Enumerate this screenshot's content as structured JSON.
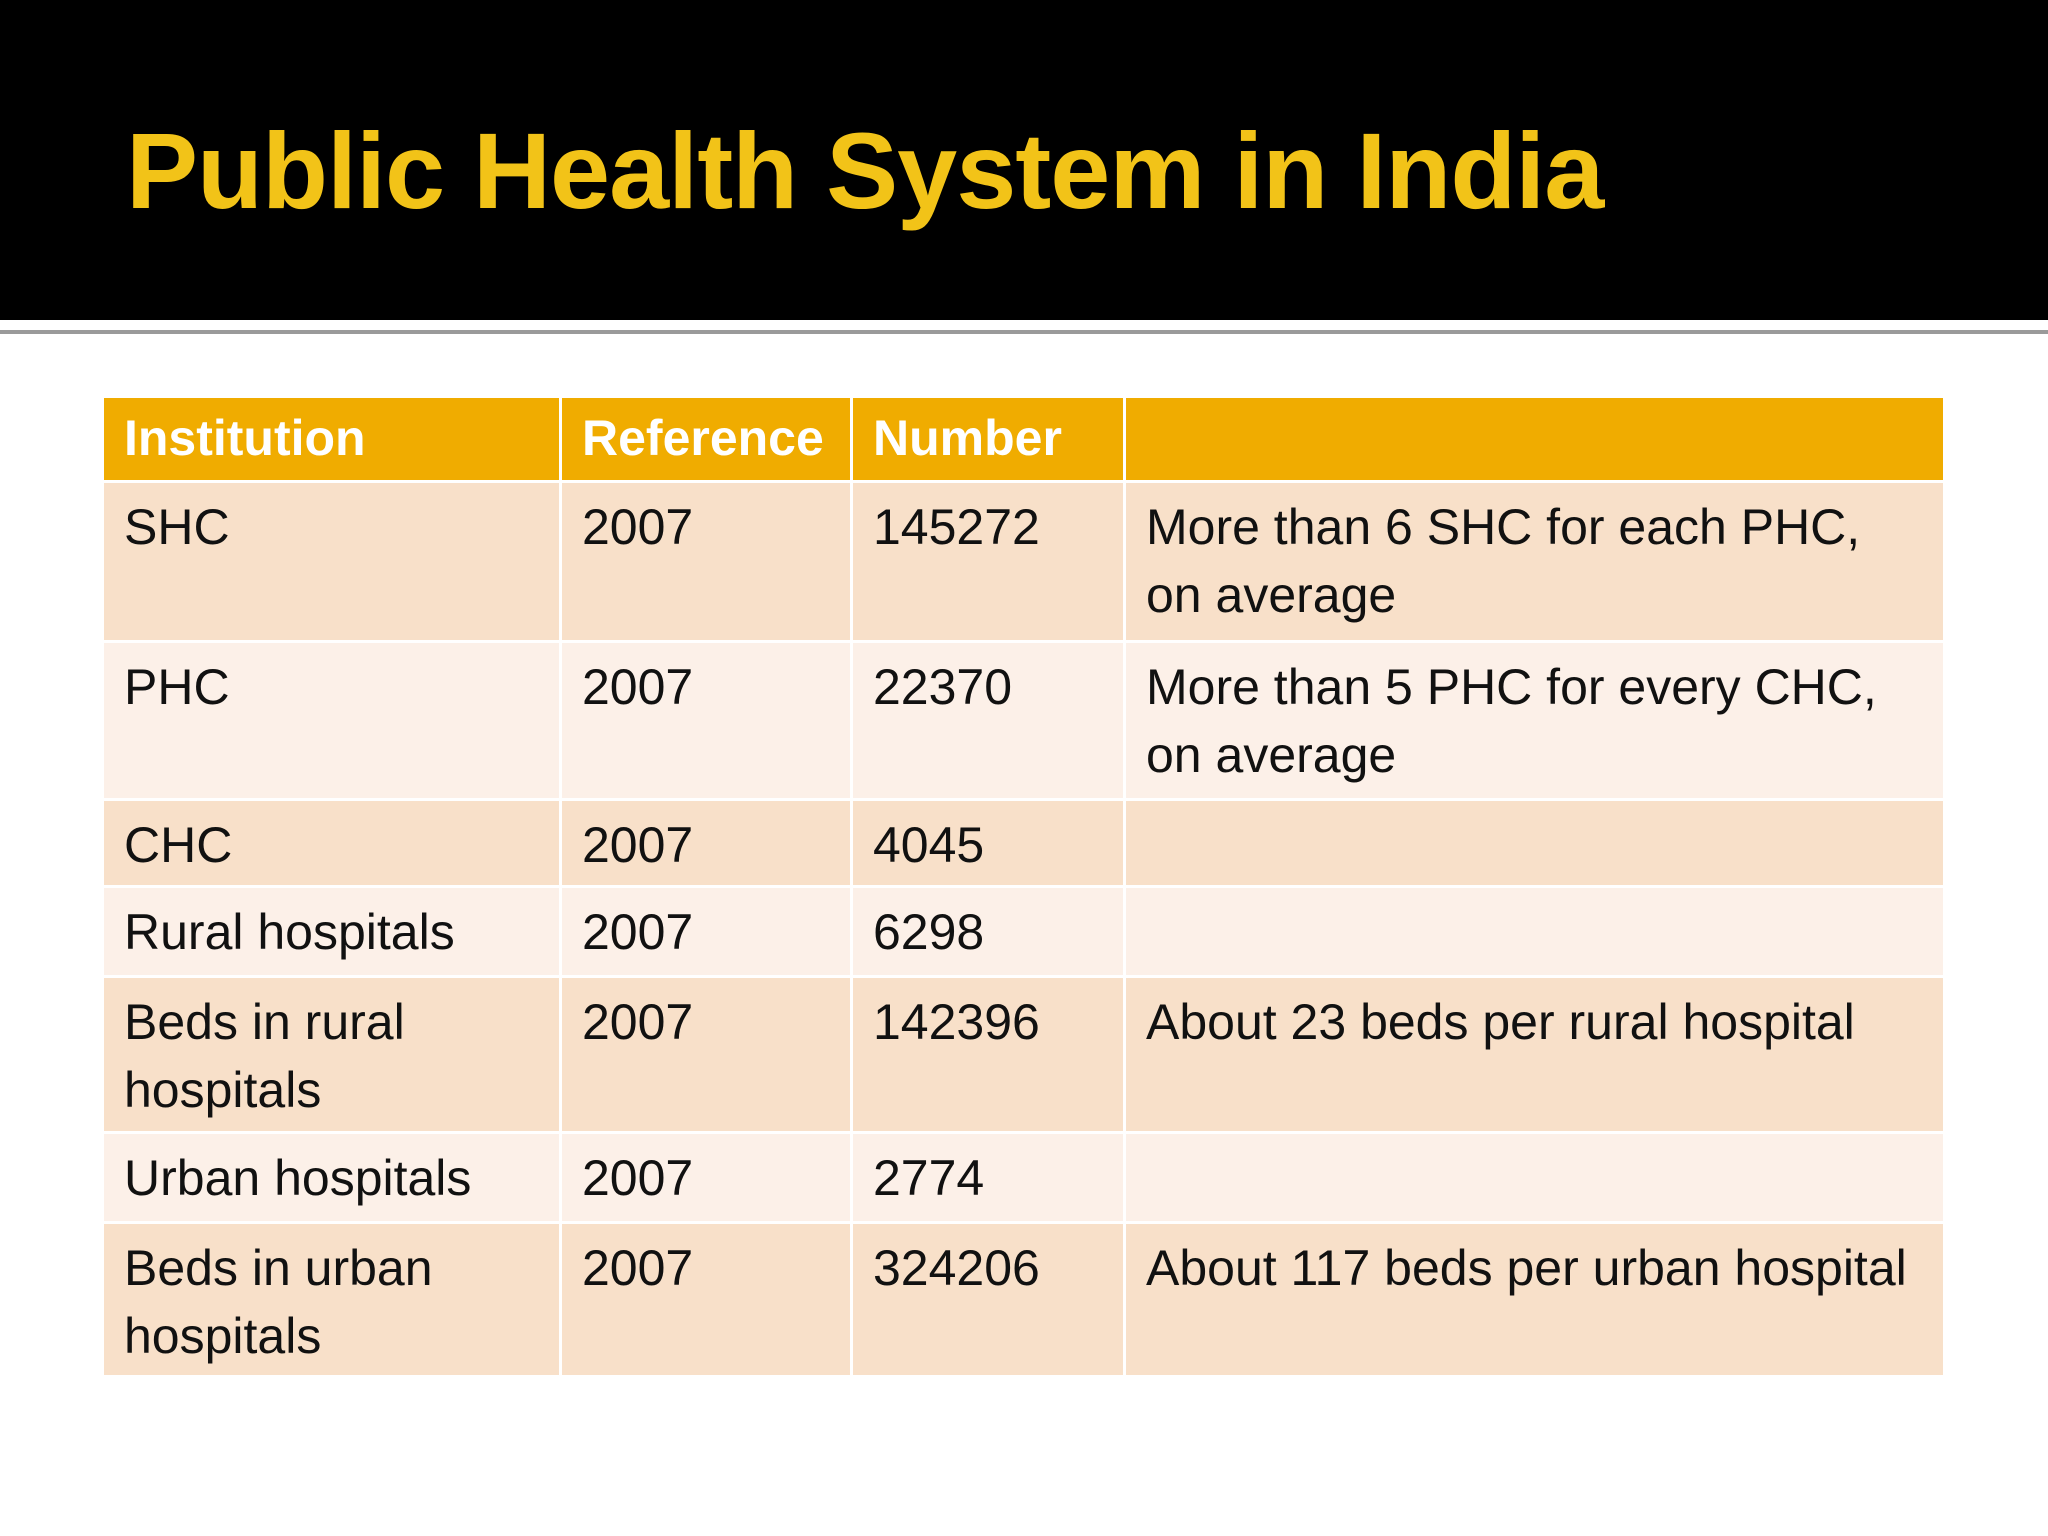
{
  "title": "Public Health System in India",
  "table": {
    "header": [
      "Institution",
      "Reference",
      "Number"
    ],
    "rows": [
      {
        "institution": "SHC",
        "reference": "2007",
        "number": "145272",
        "note": "More than 6 SHC for each PHC, on average"
      },
      {
        "institution": "PHC",
        "reference": "2007",
        "number": "22370",
        "note": "More than 5 PHC for every CHC, on average"
      },
      {
        "institution": "CHC",
        "reference": "2007",
        "number": "4045"
      },
      {
        "institution": "Rural hospitals",
        "reference": "2007",
        "number": "6298"
      },
      {
        "institution": "Beds in rural hospitals",
        "reference": "2007",
        "number": "142396",
        "note": "About 23 beds per rural hospital"
      },
      {
        "institution": "Urban hospitals",
        "reference": "2007",
        "number": "2774"
      },
      {
        "institution": "Beds in urban hospitals",
        "reference": "2007",
        "number": "324206",
        "note": "About  117 beds per urban hospital"
      }
    ]
  }
}
